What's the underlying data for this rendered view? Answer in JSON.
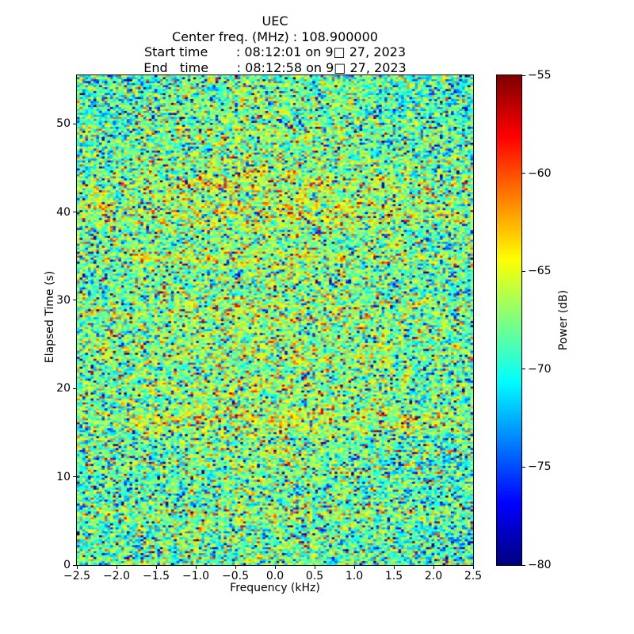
{
  "colors": {
    "background": "#ffffff",
    "text": "#000000",
    "spine": "#000000"
  },
  "chart_data": {
    "type": "heatmap",
    "title": "UEC",
    "subtitle_lines": [
      "Center freq. (MHz) : 108.900000",
      "Start time       : 08:12:01 on 9□ 27, 2023",
      "End   time       : 08:12:58 on 9□ 27, 2023"
    ],
    "xlabel": "Frequency (kHz)",
    "ylabel": "Elapsed Time (s)",
    "colorbar_label": "Power (dB)",
    "colormap": "jet",
    "grid": false,
    "legend": "none",
    "xlim": [
      -2.5,
      2.5
    ],
    "ylim": [
      0,
      55.5
    ],
    "clim": [
      -80,
      -55
    ],
    "x_ticks": [
      {
        "v": -2.5,
        "label": "−2.5"
      },
      {
        "v": -2.0,
        "label": "−2.0"
      },
      {
        "v": -1.5,
        "label": "−1.5"
      },
      {
        "v": -1.0,
        "label": "−1.0"
      },
      {
        "v": -0.5,
        "label": "−0.5"
      },
      {
        "v": 0.0,
        "label": "0.0"
      },
      {
        "v": 0.5,
        "label": "0.5"
      },
      {
        "v": 1.0,
        "label": "1.0"
      },
      {
        "v": 1.5,
        "label": "1.5"
      },
      {
        "v": 2.0,
        "label": "2.0"
      },
      {
        "v": 2.5,
        "label": "2.5"
      }
    ],
    "y_ticks": [
      {
        "v": 0,
        "label": "0"
      },
      {
        "v": 10,
        "label": "10"
      },
      {
        "v": 20,
        "label": "20"
      },
      {
        "v": 30,
        "label": "30"
      },
      {
        "v": 40,
        "label": "40"
      },
      {
        "v": 50,
        "label": "50"
      }
    ],
    "colorbar_ticks": [
      {
        "v": -55,
        "label": "−55"
      },
      {
        "v": -60,
        "label": "−60"
      },
      {
        "v": -65,
        "label": "−65"
      },
      {
        "v": -70,
        "label": "−70"
      },
      {
        "v": -75,
        "label": "−75"
      },
      {
        "v": -80,
        "label": "−80"
      }
    ],
    "noise_model": {
      "seed": 1337,
      "rows": 247,
      "cols": 143,
      "base_db": -68.6,
      "sigma_db": 3.0,
      "spike_low": {
        "prob": 0.08,
        "min": 5,
        "max": 10
      },
      "spike_high": {
        "prob": 0.08,
        "min": 4,
        "max": 8
      },
      "freq_bias": {
        "amp": 1.2,
        "center_khz": -0.1,
        "width_khz": 1.5,
        "offset": -0.7,
        "right_cool_start": 1.2,
        "right_cool_slope": 0.3
      },
      "time_bands": [
        {
          "t": 49.0,
          "amp": 0.8,
          "w": 0.7
        },
        {
          "t": 45.8,
          "amp": 1.0,
          "w": 0.6
        },
        {
          "t": 43.2,
          "amp": 2.0,
          "w": 0.7
        },
        {
          "t": 40.0,
          "amp": 2.2,
          "w": 1.3
        },
        {
          "t": 34.9,
          "amp": 2.0,
          "w": 0.5
        },
        {
          "t": 28.6,
          "amp": 1.2,
          "w": 0.9
        },
        {
          "t": 24.5,
          "amp": 0.9,
          "w": 1.2
        },
        {
          "t": 20.0,
          "amp": 1.1,
          "w": 0.5
        },
        {
          "t": 16.4,
          "amp": 1.9,
          "w": 1.1
        },
        {
          "t": 5.8,
          "amp": 1.3,
          "w": 0.6
        },
        {
          "t": 27.0,
          "amp": 0.7,
          "w": 14.0
        }
      ]
    }
  }
}
